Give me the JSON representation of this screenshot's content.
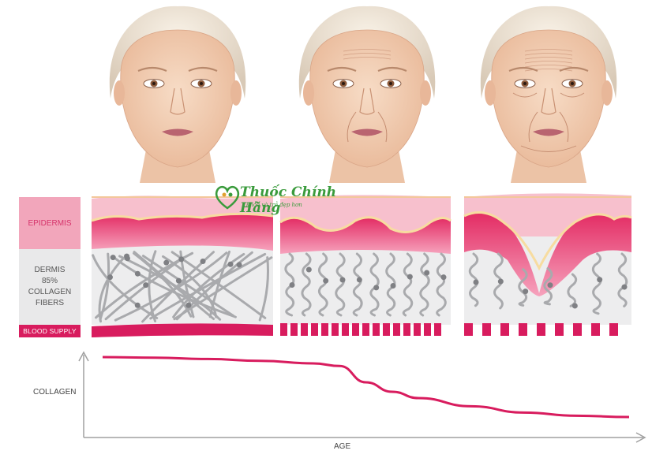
{
  "legend": {
    "epidermis": "EPIDERMIS",
    "dermis_lines": [
      "DERMIS",
      "85%",
      "COLLAGEN",
      "FIBERS"
    ],
    "blood_supply": "BLOOD SUPPLY"
  },
  "axes": {
    "y_label": "COLLAGEN",
    "x_label": "AGE"
  },
  "watermark": {
    "brand": "Thuốc Chính Hãng",
    "tagline": "khỏe và trẻ đẹp hơn"
  },
  "stages": [
    {
      "name": "young",
      "fiber_density": "dense",
      "blood_supply": "continuous"
    },
    {
      "name": "middle-aged",
      "fiber_density": "fragmented",
      "blood_supply": "segmented"
    },
    {
      "name": "elderly",
      "fiber_density": "sparse",
      "blood_supply": "sparse segments"
    }
  ],
  "colors": {
    "epidermis_top": "#f7c0cd",
    "epidermis_band": "#e8336a",
    "yellow_layer": "#f7dca0",
    "dermis_bg": "#ededee",
    "fiber": "#a9aaad",
    "node": "#7f8084",
    "blood": "#d81c5e",
    "curve": "#d81c5e",
    "axis": "#a0a0a0",
    "skin": "#f2cfb4"
  },
  "chart_data": {
    "type": "line",
    "title": "",
    "xlabel": "AGE",
    "ylabel": "COLLAGEN",
    "x": [
      0,
      0.1,
      0.2,
      0.3,
      0.4,
      0.45,
      0.5,
      0.55,
      0.6,
      0.7,
      0.8,
      0.9,
      1.0
    ],
    "series": [
      {
        "values": [
          1.0,
          0.99,
          0.97,
          0.94,
          0.9,
          0.86,
          0.6,
          0.45,
          0.35,
          0.22,
          0.12,
          0.07,
          0.05
        ]
      }
    ]
  }
}
